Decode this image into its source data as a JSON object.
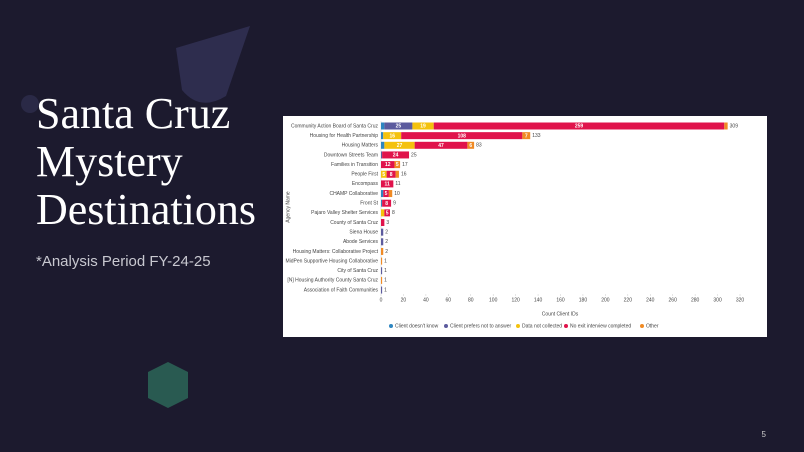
{
  "slide": {
    "title_lines": [
      "Santa Cruz",
      "Mystery",
      "Destinations"
    ],
    "subtitle": "*Analysis Period FY-24-25",
    "page_number": "5"
  },
  "chart_data": {
    "type": "stacked_hbar",
    "y_label": "Agency Name",
    "x_label": "Count Client IDs",
    "categories": [
      "Community Action Board of Santa Cruz",
      "Housing for Health Partnership",
      "Housing Matters",
      "Downtown Streets Team",
      "Families in Transition",
      "People First",
      "Encompass",
      "CHAMP Collaborative",
      "Front St",
      "Pajaro Valley Shelter Services",
      "County of Santa Cruz",
      "Siena House",
      "Abode Services",
      "Housing Matters: Collaborative Project",
      "MidPen Supportive Housing Collaborative",
      "City of Santa Cruz",
      "[N] Housing Authority County Santa Cruz",
      "Association of Faith Communities"
    ],
    "series": [
      {
        "name": "Client doesn't know",
        "color": "#2e86c1",
        "values": [
          3,
          2,
          3,
          0,
          0,
          0,
          0,
          2,
          1,
          0,
          0,
          0,
          0,
          0,
          0,
          0,
          0,
          0
        ]
      },
      {
        "name": "Client prefers not to answer",
        "color": "#5c5b9e",
        "values": [
          25,
          0,
          0,
          1,
          0,
          0,
          0,
          0,
          0,
          0,
          0,
          2,
          2,
          0,
          0,
          1,
          0,
          1
        ]
      },
      {
        "name": "Data not collected",
        "color": "#f4c20d",
        "values": [
          19,
          16,
          27,
          0,
          0,
          5,
          0,
          0,
          0,
          3,
          0,
          0,
          0,
          0,
          0,
          0,
          0,
          0
        ]
      },
      {
        "name": "No exit interview completed",
        "color": "#e0134b",
        "values": [
          259,
          108,
          47,
          24,
          12,
          8,
          11,
          5,
          8,
          5,
          3,
          0,
          0,
          0,
          0,
          0,
          0,
          0
        ]
      },
      {
        "name": "Other",
        "color": "#f08a24",
        "values": [
          3,
          7,
          6,
          0,
          5,
          3,
          0,
          3,
          0,
          0,
          0,
          0,
          0,
          2,
          1,
          0,
          1,
          0
        ]
      }
    ],
    "totals": [
      309,
      133,
      83,
      25,
      17,
      16,
      11,
      10,
      9,
      8,
      3,
      2,
      2,
      2,
      1,
      1,
      1,
      1
    ],
    "xlim": [
      0,
      320
    ],
    "xticks": [
      0,
      20,
      40,
      60,
      80,
      100,
      120,
      140,
      160,
      180,
      200,
      220,
      240,
      260,
      280,
      300,
      320
    ],
    "legend": "bottom"
  }
}
